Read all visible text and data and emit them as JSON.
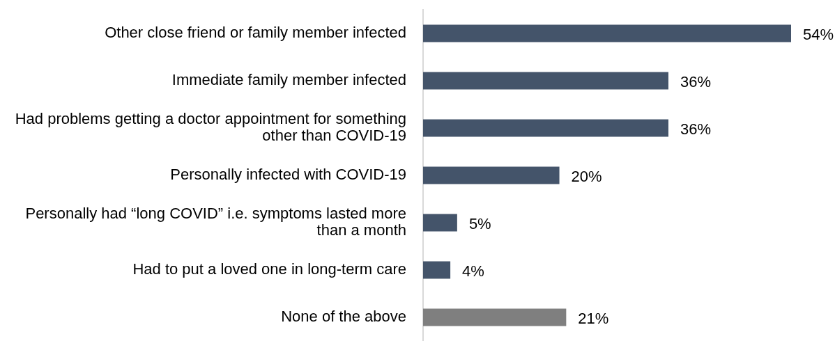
{
  "chart_data": {
    "type": "bar",
    "orientation": "horizontal",
    "categories": [
      "Other close friend or family member infected",
      "Immediate family member infected",
      "Had problems getting a doctor appointment for something other than COVID-19",
      "Personally infected with COVID-19",
      "Personally had “long COVID” i.e. symptoms lasted more than a month",
      "Had to put a loved one in long-term care",
      "None of the above"
    ],
    "values": [
      54,
      36,
      36,
      20,
      5,
      4,
      21
    ],
    "value_labels": [
      "54%",
      "36%",
      "36%",
      "20%",
      "5%",
      "4%",
      "21%"
    ],
    "colors": [
      "#44546a",
      "#44546a",
      "#44546a",
      "#44546a",
      "#44546a",
      "#44546a",
      "#7f7f7f"
    ],
    "tick_labels": "y",
    "grid": false,
    "legend": false
  }
}
